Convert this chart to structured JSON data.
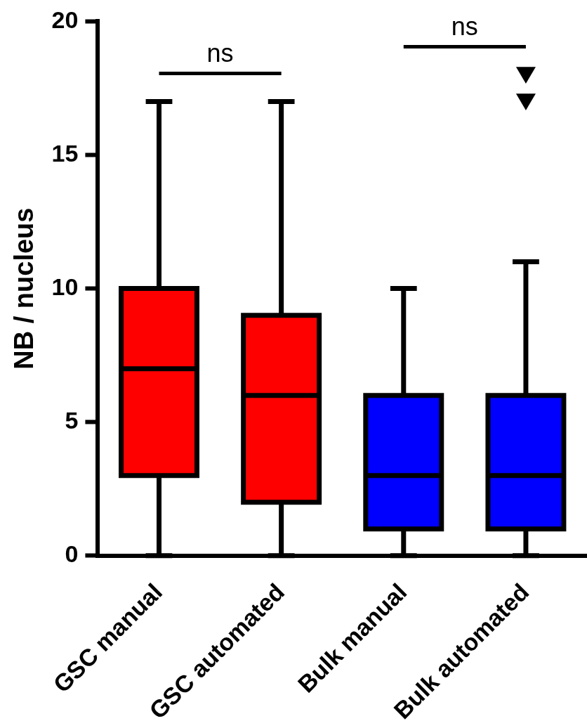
{
  "chart_data": {
    "type": "box",
    "ylabel": "NB / nucleus",
    "categories": [
      "GSC manual",
      "GSC automated",
      "Bulk manual",
      "Bulk automated"
    ],
    "colors": [
      "#ff0000",
      "#ff0000",
      "#0000ff",
      "#0000ff"
    ],
    "boxes": [
      {
        "low": 0,
        "q1": 3,
        "median": 7,
        "q3": 10,
        "high": 17
      },
      {
        "low": 0,
        "q1": 2,
        "median": 6,
        "q3": 9,
        "high": 17
      },
      {
        "low": 0,
        "q1": 1,
        "median": 3,
        "q3": 6,
        "high": 10
      },
      {
        "low": 0,
        "q1": 1,
        "median": 3,
        "q3": 6,
        "high": 11,
        "outliers": [
          18,
          17
        ]
      }
    ],
    "marker": "triangle",
    "ylim": [
      0,
      20
    ],
    "yticks": [
      0,
      5,
      10,
      15,
      20
    ],
    "grid": false,
    "legend": false,
    "annotations": [
      "ns",
      "ns"
    ]
  }
}
